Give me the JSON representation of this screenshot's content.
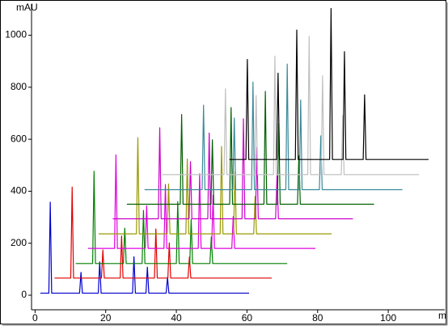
{
  "chart_data": {
    "type": "line",
    "y_label": "mAU",
    "x_label": "m",
    "xlim": [
      -1,
      116
    ],
    "ylim": [
      -56,
      1120
    ],
    "xticks": [
      0,
      20,
      40,
      60,
      80,
      100
    ],
    "yticks": [
      0,
      200,
      400,
      600,
      800,
      1000
    ],
    "grid": false,
    "series": [
      {
        "color": "#0000cc",
        "x": [
          1.5,
          3.9,
          4.3,
          4.7,
          12.6,
          13,
          13.4,
          17.9,
          18.3,
          18.7,
          27.6,
          28,
          28.4,
          31.4,
          31.8,
          32.2,
          37.1,
          37.5,
          37.9,
          60.6
        ],
        "values": [
          8,
          8,
          358,
          8,
          8,
          88,
          8,
          8,
          128,
          8,
          8,
          148,
          8,
          8,
          108,
          8,
          8,
          68,
          8,
          8
        ]
      },
      {
        "color": "#e00000",
        "x": [
          5.5,
          10.1,
          10.5,
          10.9,
          18.8,
          19.2,
          19.6,
          24.1,
          24.5,
          24.9,
          33.8,
          34.2,
          34.6,
          37.6,
          38,
          38.4,
          43.3,
          43.7,
          44.1,
          67
        ],
        "values": [
          66,
          66,
          416,
          66,
          66,
          174,
          66,
          66,
          228,
          66,
          66,
          255,
          66,
          66,
          201,
          66,
          66,
          147,
          66,
          66
        ]
      },
      {
        "color": "#008000",
        "x": [
          11.5,
          16.3,
          16.7,
          17.1,
          25,
          25.4,
          25.8,
          30.3,
          30.7,
          31.1,
          40,
          40.4,
          40.8,
          43.8,
          44.2,
          44.6,
          49.5,
          49.9,
          50.3,
          71.4
        ],
        "values": [
          122,
          122,
          477,
          122,
          122,
          258,
          122,
          122,
          326,
          122,
          122,
          360,
          122,
          122,
          292,
          122,
          122,
          224,
          122,
          122
        ]
      },
      {
        "color": "#e000e0",
        "x": [
          15,
          22.5,
          22.9,
          23.3,
          31.2,
          31.6,
          32,
          36.5,
          36.9,
          37.3,
          46.2,
          46.6,
          47,
          50,
          50.4,
          50.8,
          55.7,
          56.1,
          56.5,
          79.4
        ],
        "values": [
          180,
          180,
          540,
          180,
          180,
          344,
          180,
          180,
          426,
          180,
          180,
          467,
          180,
          180,
          385,
          180,
          180,
          303,
          180,
          180
        ]
      },
      {
        "color": "#999900",
        "x": [
          18,
          28.7,
          29.1,
          29.5,
          37.4,
          37.8,
          38.2,
          42.7,
          43.1,
          43.5,
          52.4,
          52.8,
          53.2,
          56.2,
          56.6,
          57,
          61.9,
          62.3,
          62.7,
          84
        ],
        "values": [
          236,
          236,
          606,
          236,
          236,
          428,
          236,
          236,
          524,
          236,
          236,
          572,
          236,
          236,
          476,
          236,
          236,
          380,
          236,
          236
        ]
      },
      {
        "color": "#cc00cc",
        "x": [
          22,
          34.9,
          35.3,
          35.7,
          43.6,
          44,
          44.4,
          48.9,
          49.3,
          49.7,
          58.6,
          59,
          59.4,
          62.4,
          62.8,
          63.2,
          68.1,
          68.5,
          68.9,
          90
        ],
        "values": [
          294,
          294,
          644,
          294,
          294,
          514,
          294,
          294,
          624,
          294,
          294,
          679,
          294,
          294,
          569,
          294,
          294,
          459,
          294,
          294
        ]
      },
      {
        "color": "#006000",
        "x": [
          26,
          41.1,
          41.5,
          41.9,
          49.8,
          50.2,
          50.6,
          55.1,
          55.5,
          55.9,
          64.8,
          65.2,
          65.6,
          68.6,
          69,
          69.4,
          74.3,
          74.7,
          75.1,
          96
        ],
        "values": [
          350,
          350,
          695,
          350,
          350,
          598,
          350,
          350,
          722,
          350,
          350,
          784,
          350,
          350,
          660,
          350,
          350,
          536,
          350,
          350
        ]
      },
      {
        "color": "#3a8a9a",
        "x": [
          31,
          47.3,
          47.7,
          48.1,
          56,
          56.4,
          56.8,
          61.3,
          61.7,
          62.1,
          71,
          71.4,
          71.8,
          74.8,
          75.2,
          75.6,
          80.5,
          80.9,
          81.3,
          104
        ],
        "values": [
          406,
          406,
          731,
          406,
          406,
          682,
          406,
          406,
          820,
          406,
          406,
          889,
          406,
          406,
          751,
          406,
          406,
          613,
          406,
          406
        ]
      },
      {
        "color": "#c0c0c0",
        "x": [
          36,
          53.5,
          53.9,
          54.3,
          62.2,
          62.6,
          63,
          67.5,
          67.9,
          68.3,
          77.2,
          77.6,
          78,
          81,
          81.4,
          81.8,
          86.7,
          87.1,
          87.5,
          108.7
        ],
        "values": [
          464,
          464,
          794,
          464,
          464,
          768,
          464,
          464,
          920,
          464,
          464,
          996,
          464,
          464,
          844,
          464,
          464,
          692,
          464,
          464
        ]
      },
      {
        "color": "#000000",
        "x": [
          55,
          59.7,
          60.1,
          60.5,
          68.4,
          68.8,
          69.2,
          73.7,
          74.1,
          74.5,
          83.4,
          83.8,
          84.2,
          87.2,
          87.6,
          88,
          92.9,
          93.3,
          93.7,
          111.4
        ],
        "values": [
          522,
          522,
          907,
          522,
          522,
          854,
          522,
          522,
          1020,
          522,
          522,
          1103,
          522,
          522,
          937,
          522,
          522,
          771,
          522,
          522
        ]
      }
    ]
  }
}
